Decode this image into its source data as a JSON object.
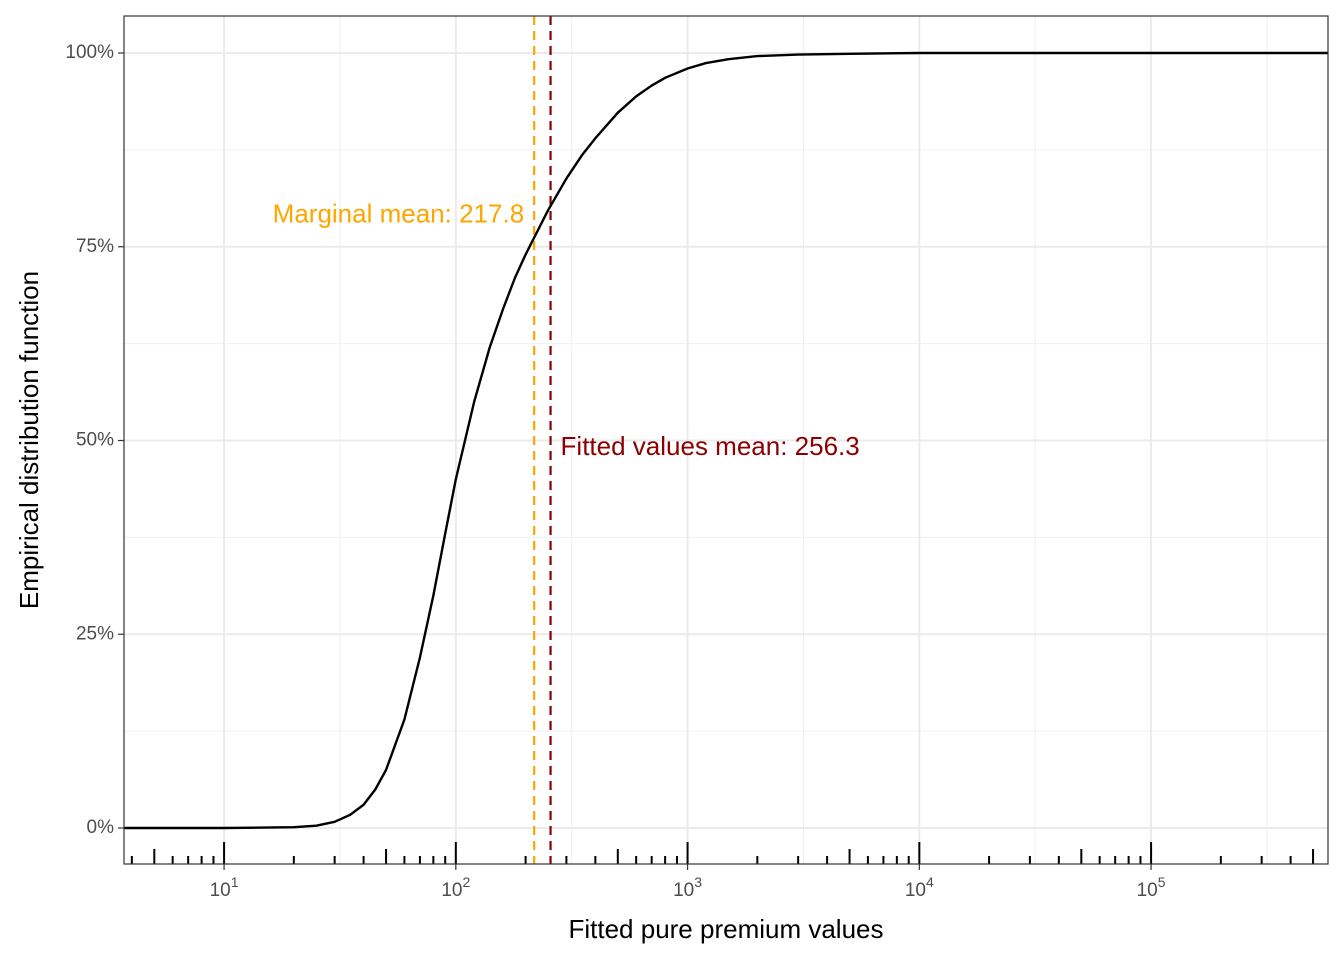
{
  "chart_data": {
    "type": "line",
    "xlabel": "Fitted pure premium values",
    "ylabel": "Empirical distribution function",
    "x_scale": "log10",
    "xlim": [
      3.7,
      580000
    ],
    "ylim": [
      0,
      1
    ],
    "grid": true,
    "legend": "none",
    "x_ticks": [
      {
        "base": "10",
        "exp": "1",
        "value": 10
      },
      {
        "base": "10",
        "exp": "2",
        "value": 100
      },
      {
        "base": "10",
        "exp": "3",
        "value": 1000
      },
      {
        "base": "10",
        "exp": "4",
        "value": 10000
      },
      {
        "base": "10",
        "exp": "5",
        "value": 100000
      }
    ],
    "y_ticks": [
      {
        "label": "0%",
        "value": 0
      },
      {
        "label": "25%",
        "value": 0.25
      },
      {
        "label": "50%",
        "value": 0.5
      },
      {
        "label": "75%",
        "value": 0.75
      },
      {
        "label": "100%",
        "value": 1.0
      }
    ],
    "series": [
      {
        "color": "#000000",
        "x": [
          3.7,
          10,
          20,
          25,
          30,
          35,
          40,
          45,
          50,
          60,
          70,
          80,
          90,
          100,
          120,
          140,
          160,
          180,
          200,
          250,
          300,
          350,
          400,
          500,
          600,
          700,
          800,
          1000,
          1200,
          1500,
          2000,
          3000,
          5000,
          10000,
          100000,
          580000
        ],
        "y": [
          0.0,
          0.0,
          0.001,
          0.003,
          0.008,
          0.017,
          0.03,
          0.05,
          0.075,
          0.14,
          0.22,
          0.3,
          0.38,
          0.45,
          0.55,
          0.62,
          0.67,
          0.71,
          0.74,
          0.797,
          0.838,
          0.868,
          0.89,
          0.923,
          0.944,
          0.958,
          0.968,
          0.98,
          0.987,
          0.992,
          0.996,
          0.998,
          0.999,
          1.0,
          1.0,
          1.0
        ]
      }
    ],
    "vlines": [
      {
        "value": 217.8,
        "color": "#FFA500",
        "label": "Marginal mean: 217.8",
        "label_side": "left",
        "label_y": 0.79
      },
      {
        "value": 256.3,
        "color": "#8B0000",
        "label": "Fitted values mean: 256.3",
        "label_side": "right",
        "label_y": 0.49
      }
    ],
    "rug": [
      4,
      5,
      6,
      7,
      8,
      9,
      10,
      20,
      30,
      40,
      50,
      60,
      70,
      80,
      90,
      100,
      200,
      300,
      400,
      500,
      600,
      700,
      800,
      900,
      1000,
      2000,
      3000,
      4000,
      5000,
      6000,
      7000,
      8000,
      9000,
      10000,
      20000,
      30000,
      40000,
      50000,
      60000,
      70000,
      80000,
      90000,
      100000,
      200000,
      300000,
      400000,
      500000
    ]
  }
}
